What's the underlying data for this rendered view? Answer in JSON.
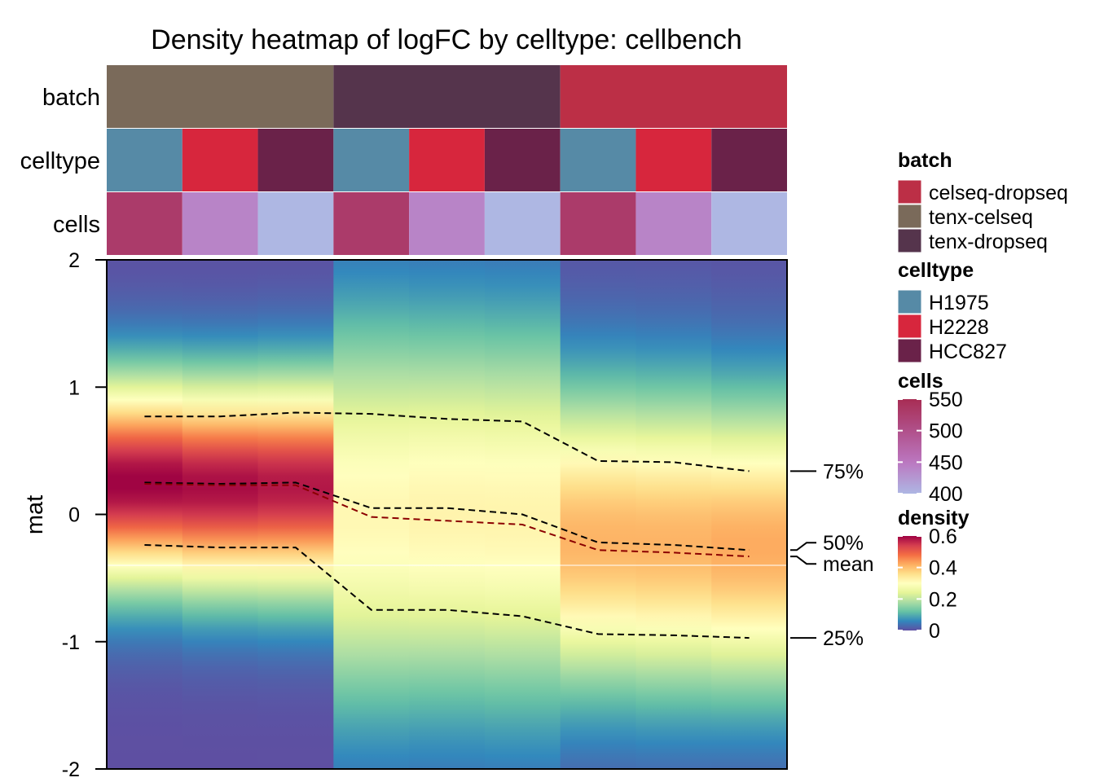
{
  "chart_data": {
    "type": "heatmap",
    "title": "Density heatmap of logFC by celltype: cellbench",
    "ylabel": "mat",
    "ylim": [
      -2,
      2
    ],
    "y_ticks": [
      "-2",
      "-1",
      "0",
      "1",
      "2"
    ],
    "columns": [
      {
        "batch": "tenx-celseq",
        "celltype": "H1975",
        "cells": 530,
        "q25": -0.24,
        "median": 0.25,
        "mean": 0.24,
        "q75": 0.77,
        "peak": 0.25,
        "spread": 0.55
      },
      {
        "batch": "tenx-celseq",
        "celltype": "H2228",
        "cells": 440,
        "q25": -0.26,
        "median": 0.24,
        "mean": 0.23,
        "q75": 0.77,
        "peak": 0.22,
        "spread": 0.56
      },
      {
        "batch": "tenx-celseq",
        "celltype": "HCC827",
        "cells": 400,
        "q25": -0.26,
        "median": 0.25,
        "mean": 0.23,
        "q75": 0.8,
        "peak": 0.22,
        "spread": 0.57
      },
      {
        "batch": "tenx-dropseq",
        "celltype": "H1975",
        "cells": 530,
        "q25": -0.75,
        "median": 0.05,
        "mean": -0.02,
        "q75": 0.79,
        "peak": 0.0,
        "spread": 1.05
      },
      {
        "batch": "tenx-dropseq",
        "celltype": "H2228",
        "cells": 440,
        "q25": -0.75,
        "median": 0.05,
        "mean": -0.05,
        "q75": 0.75,
        "peak": 0.0,
        "spread": 1.03
      },
      {
        "batch": "tenx-dropseq",
        "celltype": "HCC827",
        "cells": 400,
        "q25": -0.8,
        "median": 0.0,
        "mean": -0.08,
        "q75": 0.73,
        "peak": -0.02,
        "spread": 1.03
      },
      {
        "batch": "celseq-dropseq",
        "celltype": "H1975",
        "cells": 530,
        "q25": -0.94,
        "median": -0.22,
        "mean": -0.28,
        "q75": 0.42,
        "peak": -0.2,
        "spread": 0.8
      },
      {
        "batch": "celseq-dropseq",
        "celltype": "H2228",
        "cells": 440,
        "q25": -0.95,
        "median": -0.24,
        "mean": -0.3,
        "q75": 0.41,
        "peak": -0.22,
        "spread": 0.8
      },
      {
        "batch": "celseq-dropseq",
        "celltype": "HCC827",
        "cells": 400,
        "q25": -0.97,
        "median": -0.28,
        "mean": -0.33,
        "q75": 0.34,
        "peak": -0.25,
        "spread": 0.78
      }
    ],
    "annotation_rows": [
      "batch",
      "celltype",
      "cells"
    ],
    "quantile_labels": {
      "q75": "75%",
      "median": "50%",
      "mean": "mean",
      "q25": "25%"
    },
    "horizontal_rule_y": -0.4,
    "colors": {
      "batch": {
        "celseq-dropseq": "#bc2f46",
        "tenx-celseq": "#7a6a5a",
        "tenx-dropseq": "#55344c"
      },
      "celltype": {
        "H1975": "#568aa6",
        "H2228": "#d7263d",
        "HCC827": "#6a2249"
      },
      "cells": {
        "400": "#aeb7e3",
        "450": "#bb77c0",
        "500": "#b0508a",
        "550": "#a82d54"
      },
      "density": [
        "#5e4fa2",
        "#3288bd",
        "#66c2a5",
        "#abdda4",
        "#e6f598",
        "#ffffbf",
        "#fee08b",
        "#fdae61",
        "#f46d43",
        "#d53e4f",
        "#9e0142"
      ],
      "mean_line": "#8b0000",
      "quantile_line": "#000000"
    },
    "legend": {
      "placement": "right",
      "batch": {
        "title": "batch",
        "items": [
          "celseq-dropseq",
          "tenx-celseq",
          "tenx-dropseq"
        ]
      },
      "celltype": {
        "title": "celltype",
        "items": [
          "H1975",
          "H2228",
          "HCC827"
        ]
      },
      "cells": {
        "title": "cells",
        "ticks": [
          "550",
          "500",
          "450",
          "400"
        ],
        "range": [
          400,
          550
        ]
      },
      "density": {
        "title": "density",
        "ticks": [
          "0.6",
          "0.4",
          "0.2",
          "0"
        ],
        "range": [
          0,
          0.6
        ]
      }
    }
  }
}
